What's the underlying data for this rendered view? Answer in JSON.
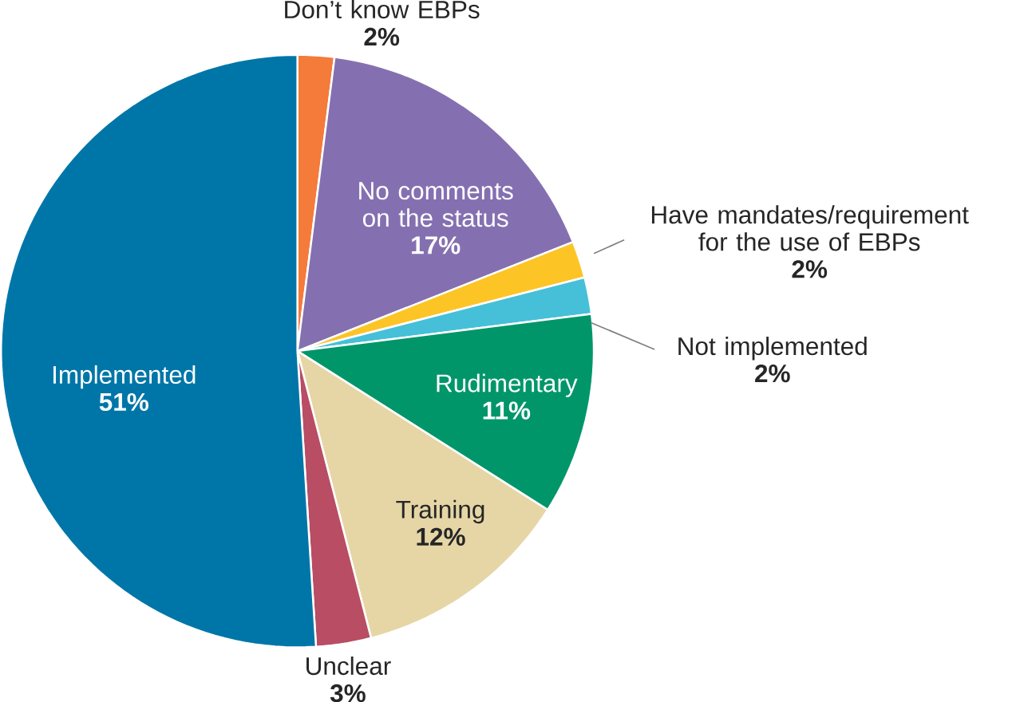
{
  "chart_data": {
    "type": "pie",
    "categories": [
      "Don’t know EBPs",
      "No comments on the status",
      "Have mandates/requirement for the use of EBPs",
      "Not implemented",
      "Rudimentary",
      "Training",
      "Unclear",
      "Implemented"
    ],
    "values": [
      2,
      17,
      2,
      2,
      11,
      12,
      3,
      51
    ],
    "value_labels": [
      "2%",
      "17%",
      "2%",
      "2%",
      "11%",
      "12%",
      "3%",
      "51%"
    ],
    "colors": [
      "#f47b3a",
      "#8470b0",
      "#fcc425",
      "#45c0d8",
      "#00966a",
      "#e6d6a6",
      "#b84d63",
      "#0076a8"
    ]
  }
}
